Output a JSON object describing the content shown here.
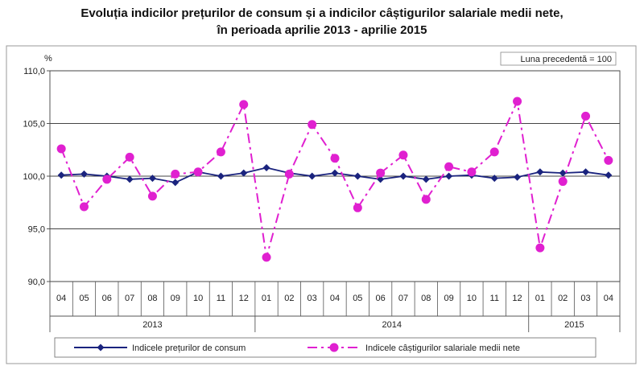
{
  "chart_data": {
    "type": "line",
    "title": [
      "Evoluția indicilor prețurilor de consum și a indicilor câștigurilor salariale medii nete,",
      "în perioada aprilie 2013 - aprilie 2015"
    ],
    "ylabel": "%",
    "note": "Luna precedentă = 100",
    "ylim": [
      90,
      110
    ],
    "y_ticks": [
      "90,0",
      "95,0",
      "100,0",
      "105,0",
      "110,0"
    ],
    "y_tick_values": [
      90,
      95,
      100,
      105,
      110
    ],
    "months": [
      "04",
      "05",
      "06",
      "07",
      "08",
      "09",
      "10",
      "11",
      "12",
      "01",
      "02",
      "03",
      "04",
      "05",
      "06",
      "07",
      "08",
      "09",
      "10",
      "11",
      "12",
      "01",
      "02",
      "03",
      "04"
    ],
    "years": [
      {
        "label": "2013",
        "start": 0,
        "end": 8
      },
      {
        "label": "2014",
        "start": 9,
        "end": 20
      },
      {
        "label": "2015",
        "start": 21,
        "end": 24
      }
    ],
    "grid": true,
    "legend_position": "bottom",
    "series": [
      {
        "name": "Indicele prețurilor de consum",
        "color": "#1a237e",
        "style": "solid",
        "marker": "diamond",
        "values": [
          100.1,
          100.2,
          100.0,
          99.7,
          99.8,
          99.4,
          100.4,
          100.0,
          100.3,
          100.8,
          100.3,
          100.0,
          100.3,
          100.0,
          99.7,
          100.0,
          99.7,
          100.0,
          100.1,
          99.8,
          99.9,
          100.4,
          100.3,
          100.4,
          100.1
        ]
      },
      {
        "name": "Indicele câștigurilor salariale medii nete",
        "color": "#e020d0",
        "style": "dashdot",
        "marker": "circle",
        "values": [
          102.6,
          97.1,
          99.7,
          101.8,
          98.1,
          100.2,
          100.4,
          102.3,
          106.8,
          92.3,
          100.2,
          104.9,
          101.7,
          97.0,
          100.3,
          102.0,
          97.8,
          100.9,
          100.4,
          102.3,
          107.1,
          93.2,
          99.5,
          105.7,
          101.5
        ]
      }
    ]
  }
}
